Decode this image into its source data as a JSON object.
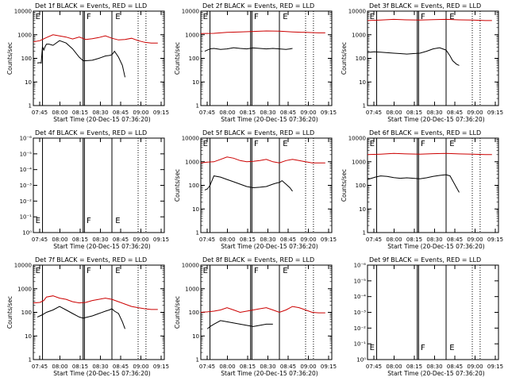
{
  "chart_data": [
    {
      "type": "line",
      "title": "Det 1f BLACK = Events, RED = LLD",
      "xlabel": "Start Time (20-Dec-15 07:36:20)",
      "ylabel": "Counts/sec",
      "x_ticks": [
        "07:45",
        "08:00",
        "08:15",
        "08:30",
        "08:45",
        "09:00",
        "09:15"
      ],
      "y_ticks": [
        "1",
        "10",
        "100",
        "1000",
        "10000"
      ],
      "xlim": [
        0,
        100
      ],
      "ylim": [
        0,
        4
      ],
      "solid_lines": [
        7,
        38,
        39,
        60
      ],
      "dotted_lines": [
        80,
        86
      ],
      "flags": [
        {
          "text": "E",
          "x": 1,
          "pos": "top"
        },
        {
          "text": "F",
          "x": 40,
          "pos": "top"
        },
        {
          "text": "E",
          "x": 62,
          "pos": "top"
        }
      ],
      "series": [
        {
          "name": "Events",
          "color": "#000000",
          "x": [
            3,
            5,
            6,
            7,
            8,
            9,
            10,
            12,
            15,
            20,
            25,
            30,
            35,
            38,
            40,
            45,
            50,
            55,
            58,
            60,
            62,
            65,
            68,
            70
          ],
          "y": [
            1.8,
            1.82,
            1.8,
            2.5,
            2.35,
            2.5,
            2.6,
            2.6,
            2.55,
            2.75,
            2.65,
            2.4,
            2.05,
            1.9,
            1.9,
            1.92,
            2.0,
            2.1,
            2.12,
            2.15,
            2.3,
            2.05,
            1.7,
            1.2
          ]
        },
        {
          "name": "LLD",
          "color": "#cc0000",
          "x": [
            0,
            5,
            7,
            10,
            15,
            20,
            25,
            30,
            35,
            40,
            45,
            50,
            55,
            60,
            65,
            70,
            75,
            80,
            85,
            90,
            95
          ],
          "y": [
            2.7,
            2.75,
            2.8,
            2.88,
            3.0,
            2.95,
            2.9,
            2.82,
            2.9,
            2.8,
            2.83,
            2.88,
            2.95,
            2.85,
            2.78,
            2.8,
            2.85,
            2.75,
            2.68,
            2.65,
            2.65
          ]
        }
      ]
    },
    {
      "type": "line",
      "title": "Det 2f BLACK = Events, RED = LLD",
      "xlabel": "Start Time (20-Dec-15 07:36:20)",
      "ylabel": "Counts/sec",
      "x_ticks": [
        "07:45",
        "08:00",
        "08:15",
        "08:30",
        "08:45",
        "09:00",
        "09:15"
      ],
      "y_ticks": [
        "1",
        "10",
        "100",
        "1000",
        "10000"
      ],
      "xlim": [
        0,
        100
      ],
      "ylim": [
        0,
        4
      ],
      "solid_lines": [
        7,
        38,
        39,
        60
      ],
      "dotted_lines": [
        80,
        86
      ],
      "flags": [
        {
          "text": "E",
          "x": 1,
          "pos": "top"
        },
        {
          "text": "F",
          "x": 40,
          "pos": "top"
        },
        {
          "text": "E",
          "x": 62,
          "pos": "top"
        }
      ],
      "series": [
        {
          "name": "Events",
          "color": "#000000",
          "x": [
            3,
            5,
            7,
            10,
            15,
            20,
            25,
            30,
            35,
            40,
            45,
            50,
            55,
            60,
            65,
            68,
            70
          ],
          "y": [
            2.3,
            2.35,
            2.4,
            2.42,
            2.38,
            2.4,
            2.45,
            2.42,
            2.4,
            2.44,
            2.42,
            2.4,
            2.42,
            2.4,
            2.38,
            2.4,
            2.42
          ]
        },
        {
          "name": "LLD",
          "color": "#cc0000",
          "x": [
            0,
            10,
            20,
            30,
            40,
            50,
            60,
            70,
            80,
            90,
            95
          ],
          "y": [
            3.05,
            3.06,
            3.1,
            3.12,
            3.14,
            3.16,
            3.15,
            3.12,
            3.1,
            3.08,
            3.08
          ]
        }
      ]
    },
    {
      "type": "line",
      "title": "Det 3f BLACK = Events, RED = LLD",
      "xlabel": "Start Time (20-Dec-15 07:36:20)",
      "ylabel": "Counts/sec",
      "x_ticks": [
        "07:45",
        "08:00",
        "08:15",
        "08:30",
        "08:45",
        "09:00",
        "09:15"
      ],
      "y_ticks": [
        "1",
        "10",
        "100",
        "1000",
        "10000"
      ],
      "xlim": [
        0,
        100
      ],
      "ylim": [
        0,
        4
      ],
      "solid_lines": [
        7,
        38,
        39,
        60
      ],
      "dotted_lines": [
        80,
        86
      ],
      "flags": [
        {
          "text": "E",
          "x": 1,
          "pos": "top"
        },
        {
          "text": "F",
          "x": 40,
          "pos": "top"
        },
        {
          "text": "E",
          "x": 62,
          "pos": "top"
        }
      ],
      "series": [
        {
          "name": "Events",
          "color": "#000000",
          "x": [
            0,
            5,
            10,
            15,
            20,
            25,
            30,
            35,
            40,
            45,
            50,
            55,
            60,
            63,
            65,
            68,
            70
          ],
          "y": [
            2.25,
            2.28,
            2.26,
            2.24,
            2.22,
            2.2,
            2.18,
            2.2,
            2.22,
            2.3,
            2.4,
            2.45,
            2.35,
            2.1,
            1.9,
            1.75,
            1.7
          ]
        },
        {
          "name": "LLD",
          "color": "#cc0000",
          "x": [
            0,
            10,
            20,
            30,
            40,
            50,
            60,
            70,
            80,
            90,
            95
          ],
          "y": [
            3.6,
            3.62,
            3.65,
            3.63,
            3.62,
            3.64,
            3.65,
            3.63,
            3.62,
            3.6,
            3.6
          ]
        }
      ]
    },
    {
      "type": "line",
      "title": "Det 4f BLACK = Events, RED = LLD",
      "xlabel": "Start Time (20-Dec-15 07:36:20)",
      "ylabel": "",
      "x_ticks": [
        "07:45",
        "08:00",
        "08:15",
        "08:30",
        "08:45",
        "09:00",
        "09:15"
      ],
      "y_ticks": [
        "10⁰",
        "10⁻¹",
        "10⁻²",
        "10⁻³",
        "10⁻⁴",
        "10⁻⁵",
        "10⁻⁶"
      ],
      "xlim": [
        0,
        100
      ],
      "ylim": [
        0,
        6
      ],
      "solid_lines": [
        7,
        38,
        39,
        60
      ],
      "dotted_lines": [
        80,
        86
      ],
      "flags": [
        {
          "text": "E",
          "x": 1,
          "pos": "bottom"
        },
        {
          "text": "F",
          "x": 40,
          "pos": "bottom"
        },
        {
          "text": "E",
          "x": 62,
          "pos": "bottom"
        }
      ],
      "series": []
    },
    {
      "type": "line",
      "title": "Det 5f BLACK = Events, RED = LLD",
      "xlabel": "Start Time (20-Dec-15 07:36:20)",
      "ylabel": "Counts/sec",
      "x_ticks": [
        "07:45",
        "08:00",
        "08:15",
        "08:30",
        "08:45",
        "09:00",
        "09:15"
      ],
      "y_ticks": [
        "1",
        "10",
        "100",
        "1000",
        "10000"
      ],
      "xlim": [
        0,
        100
      ],
      "ylim": [
        0,
        4
      ],
      "solid_lines": [
        7,
        38,
        39,
        60
      ],
      "dotted_lines": [
        80,
        86
      ],
      "flags": [
        {
          "text": "E",
          "x": 1,
          "pos": "top"
        },
        {
          "text": "F",
          "x": 40,
          "pos": "top"
        },
        {
          "text": "E",
          "x": 62,
          "pos": "top"
        }
      ],
      "series": [
        {
          "name": "Events",
          "color": "#000000",
          "x": [
            3,
            5,
            7,
            10,
            15,
            20,
            25,
            30,
            35,
            40,
            45,
            50,
            55,
            58,
            60,
            62,
            65,
            68,
            70
          ],
          "y": [
            1.8,
            1.85,
            2.0,
            2.4,
            2.35,
            2.25,
            2.15,
            2.05,
            1.95,
            1.9,
            1.92,
            1.95,
            2.05,
            2.1,
            2.12,
            2.2,
            2.05,
            1.9,
            1.75
          ]
        },
        {
          "name": "LLD",
          "color": "#cc0000",
          "x": [
            0,
            5,
            10,
            15,
            20,
            25,
            30,
            35,
            40,
            45,
            50,
            55,
            60,
            65,
            70,
            75,
            80,
            85,
            90,
            95
          ],
          "y": [
            2.95,
            2.98,
            3.0,
            3.1,
            3.2,
            3.15,
            3.05,
            3.0,
            3.02,
            3.05,
            3.1,
            3.0,
            2.95,
            3.05,
            3.1,
            3.05,
            3.0,
            2.95,
            2.95,
            2.95
          ]
        }
      ]
    },
    {
      "type": "line",
      "title": "Det 6f BLACK = Events, RED = LLD",
      "xlabel": "Start Time (20-Dec-15 07:36:20)",
      "ylabel": "Counts/sec",
      "x_ticks": [
        "07:45",
        "08:00",
        "08:15",
        "08:30",
        "08:45",
        "09:00",
        "09:15"
      ],
      "y_ticks": [
        "1",
        "10",
        "100",
        "1000",
        "10000"
      ],
      "xlim": [
        0,
        100
      ],
      "ylim": [
        0,
        4
      ],
      "solid_lines": [
        7,
        38,
        39,
        60
      ],
      "dotted_lines": [
        80,
        86
      ],
      "flags": [
        {
          "text": "E",
          "x": 1,
          "pos": "top"
        },
        {
          "text": "F",
          "x": 40,
          "pos": "top"
        },
        {
          "text": "E",
          "x": 62,
          "pos": "top"
        }
      ],
      "series": [
        {
          "name": "Events",
          "color": "#000000",
          "x": [
            0,
            3,
            6,
            10,
            15,
            20,
            25,
            30,
            35,
            40,
            45,
            50,
            55,
            60,
            63,
            65,
            68,
            70
          ],
          "y": [
            2.25,
            2.3,
            2.35,
            2.4,
            2.38,
            2.33,
            2.3,
            2.32,
            2.3,
            2.28,
            2.32,
            2.38,
            2.42,
            2.45,
            2.4,
            2.2,
            1.9,
            1.7
          ]
        },
        {
          "name": "LLD",
          "color": "#cc0000",
          "x": [
            0,
            10,
            20,
            30,
            40,
            50,
            60,
            70,
            80,
            90,
            95
          ],
          "y": [
            3.3,
            3.32,
            3.35,
            3.33,
            3.32,
            3.34,
            3.35,
            3.33,
            3.32,
            3.3,
            3.3
          ]
        }
      ]
    },
    {
      "type": "line",
      "title": "Det 7f BLACK = Events, RED = LLD",
      "xlabel": "Start Time (20-Dec-15 07:36:20)",
      "ylabel": "Counts/sec",
      "x_ticks": [
        "07:45",
        "08:00",
        "08:15",
        "08:30",
        "08:45",
        "09:00",
        "09:15"
      ],
      "y_ticks": [
        "1",
        "10",
        "100",
        "1000",
        "10000"
      ],
      "xlim": [
        0,
        100
      ],
      "ylim": [
        0,
        4
      ],
      "solid_lines": [
        7,
        38,
        39,
        60
      ],
      "dotted_lines": [
        80,
        86
      ],
      "flags": [
        {
          "text": "E",
          "x": 1,
          "pos": "top"
        },
        {
          "text": "F",
          "x": 40,
          "pos": "top"
        },
        {
          "text": "E",
          "x": 62,
          "pos": "top"
        }
      ],
      "series": [
        {
          "name": "Events",
          "color": "#000000",
          "x": [
            3,
            5,
            7,
            10,
            15,
            20,
            25,
            30,
            35,
            38,
            40,
            45,
            50,
            55,
            58,
            60,
            62,
            65,
            68,
            70
          ],
          "y": [
            1.8,
            1.85,
            1.9,
            2.0,
            2.1,
            2.25,
            2.1,
            1.95,
            1.8,
            1.75,
            1.78,
            1.85,
            1.95,
            2.05,
            2.1,
            2.15,
            2.05,
            1.95,
            1.6,
            1.3
          ]
        },
        {
          "name": "LLD",
          "color": "#cc0000",
          "x": [
            0,
            5,
            8,
            10,
            15,
            20,
            25,
            30,
            35,
            40,
            45,
            50,
            55,
            60,
            65,
            70,
            75,
            80,
            85,
            90,
            95
          ],
          "y": [
            2.4,
            2.42,
            2.5,
            2.65,
            2.7,
            2.6,
            2.55,
            2.45,
            2.4,
            2.42,
            2.5,
            2.55,
            2.6,
            2.55,
            2.45,
            2.35,
            2.25,
            2.2,
            2.15,
            2.12,
            2.12
          ]
        }
      ]
    },
    {
      "type": "line",
      "title": "Det 8f BLACK = Events, RED = LLD",
      "xlabel": "Start Time (20-Dec-15 07:36:20)",
      "ylabel": "Counts/sec",
      "x_ticks": [
        "07:45",
        "08:00",
        "08:15",
        "08:30",
        "08:45",
        "09:00",
        "09:15"
      ],
      "y_ticks": [
        "1",
        "10",
        "100",
        "1000",
        "10000"
      ],
      "xlim": [
        0,
        100
      ],
      "ylim": [
        0,
        4
      ],
      "solid_lines": [
        7,
        38,
        39,
        60
      ],
      "dotted_lines": [
        80,
        86
      ],
      "flags": [
        {
          "text": "E",
          "x": 1,
          "pos": "top"
        },
        {
          "text": "F",
          "x": 40,
          "pos": "top"
        },
        {
          "text": "E",
          "x": 62,
          "pos": "top"
        }
      ],
      "series": [
        {
          "name": "Events",
          "color": "#000000",
          "x": [
            5,
            7,
            10,
            15,
            20,
            25,
            30,
            35,
            38,
            40,
            45,
            50,
            55
          ],
          "y": [
            1.3,
            1.4,
            1.5,
            1.65,
            1.6,
            1.55,
            1.5,
            1.45,
            1.42,
            1.4,
            1.45,
            1.5,
            1.5
          ]
        },
        {
          "name": "LLD",
          "color": "#cc0000",
          "x": [
            0,
            5,
            10,
            15,
            20,
            25,
            30,
            35,
            40,
            45,
            50,
            55,
            60,
            65,
            70,
            75,
            80,
            85,
            90,
            95
          ],
          "y": [
            2.0,
            2.02,
            2.05,
            2.1,
            2.2,
            2.1,
            2.0,
            2.05,
            2.1,
            2.15,
            2.2,
            2.1,
            2.0,
            2.1,
            2.25,
            2.2,
            2.1,
            2.0,
            1.98,
            1.98
          ]
        }
      ]
    },
    {
      "type": "line",
      "title": "Det 9f BLACK = Events, RED = LLD",
      "xlabel": "Start Time (20-Dec-15 07:36:20)",
      "ylabel": "",
      "x_ticks": [
        "07:45",
        "08:00",
        "08:15",
        "08:30",
        "08:45",
        "09:00",
        "09:15"
      ],
      "y_ticks": [
        "10⁰",
        "10⁻¹",
        "10⁻²",
        "10⁻³",
        "10⁻⁴",
        "10⁻⁵",
        "10⁻⁶"
      ],
      "xlim": [
        0,
        100
      ],
      "ylim": [
        0,
        6
      ],
      "solid_lines": [
        7,
        38,
        39,
        60
      ],
      "dotted_lines": [
        80,
        86
      ],
      "flags": [
        {
          "text": "E",
          "x": 1,
          "pos": "bottom"
        },
        {
          "text": "F",
          "x": 40,
          "pos": "bottom"
        },
        {
          "text": "E",
          "x": 62,
          "pos": "bottom"
        }
      ],
      "series": []
    }
  ]
}
